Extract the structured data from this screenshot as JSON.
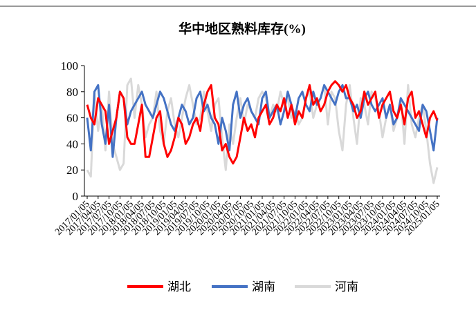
{
  "chart_data": {
    "type": "line",
    "title": "华中地区熟料库存(%)",
    "categories": [
      "2017/01/05",
      null,
      null,
      "2017/04/05",
      null,
      null,
      "2017/07/05",
      null,
      null,
      "2017/10/05",
      null,
      null,
      "2018/01/05",
      null,
      null,
      "2018/04/05",
      null,
      null,
      "2018/07/05",
      null,
      null,
      "2018/10/05",
      null,
      null,
      "2019/01/05",
      null,
      null,
      "2019/04/05",
      null,
      null,
      "2019/07/05",
      null,
      null,
      "2019/10/05",
      null,
      null,
      "2020/01/05",
      null,
      null,
      "2020/04/05",
      null,
      null,
      "2020/07/05",
      null,
      null,
      "2020/10/05",
      null,
      null,
      "2021/01/05",
      null,
      null,
      "2021/04/05",
      null,
      null,
      "2021/07/05",
      null,
      null,
      "2021/10/05",
      null,
      null,
      "2022/01/05",
      null,
      null,
      "2022/04/05",
      null,
      null,
      "2022/07/05",
      null,
      null,
      "2022/10/05",
      null,
      null,
      "2023/01/05",
      null,
      null,
      "2023/04/05",
      null,
      null,
      "2023/07/05",
      null,
      null,
      "2023/10/05",
      null,
      null,
      "2024/01/05",
      null,
      null,
      "2024/04/05",
      null,
      null,
      "2024/07/05",
      null,
      null,
      "2024/10/05",
      null,
      null,
      "2025/01/05"
    ],
    "series": [
      {
        "name": "湖北",
        "color": "#ff0000",
        "values": [
          70,
          60,
          55,
          75,
          70,
          65,
          40,
          50,
          60,
          80,
          75,
          45,
          40,
          40,
          55,
          70,
          30,
          30,
          45,
          60,
          65,
          40,
          30,
          35,
          45,
          60,
          55,
          40,
          45,
          55,
          60,
          50,
          70,
          80,
          85,
          60,
          55,
          35,
          40,
          30,
          25,
          30,
          45,
          60,
          50,
          55,
          45,
          60,
          65,
          70,
          55,
          60,
          70,
          65,
          75,
          60,
          70,
          55,
          65,
          60,
          75,
          85,
          70,
          75,
          65,
          70,
          80,
          85,
          88,
          85,
          80,
          85,
          75,
          70,
          60,
          65,
          80,
          70,
          75,
          80,
          60,
          70,
          75,
          80,
          65,
          60,
          70,
          55,
          75,
          80,
          60,
          65,
          55,
          45,
          60,
          65,
          58
        ]
      },
      {
        "name": "湖南",
        "color": "#4472c4",
        "values": [
          60,
          35,
          80,
          85,
          55,
          40,
          70,
          30,
          60,
          80,
          75,
          55,
          65,
          70,
          75,
          80,
          70,
          65,
          60,
          70,
          80,
          75,
          65,
          55,
          50,
          60,
          70,
          65,
          55,
          60,
          75,
          80,
          65,
          70,
          60,
          55,
          40,
          60,
          50,
          35,
          70,
          80,
          60,
          70,
          75,
          65,
          60,
          55,
          75,
          80,
          60,
          65,
          70,
          55,
          65,
          80,
          70,
          60,
          75,
          80,
          70,
          65,
          80,
          70,
          75,
          85,
          80,
          75,
          70,
          80,
          85,
          75,
          75,
          65,
          70,
          60,
          75,
          80,
          70,
          65,
          70,
          75,
          60,
          70,
          55,
          60,
          75,
          70,
          65,
          60,
          55,
          50,
          70,
          65,
          50,
          35,
          60
        ]
      },
      {
        "name": "河南",
        "color": "#d9d9d9",
        "values": [
          20,
          15,
          80,
          50,
          70,
          35,
          80,
          40,
          30,
          20,
          25,
          85,
          90,
          60,
          85,
          70,
          45,
          55,
          60,
          80,
          50,
          40,
          65,
          75,
          55,
          45,
          60,
          75,
          85,
          70,
          55,
          60,
          80,
          65,
          50,
          70,
          75,
          45,
          20,
          55,
          40,
          60,
          75,
          55,
          70,
          65,
          60,
          75,
          80,
          75,
          60,
          70,
          65,
          80,
          70,
          75,
          60,
          65,
          55,
          60,
          75,
          80,
          60,
          70,
          75,
          85,
          55,
          80,
          75,
          50,
          35,
          70,
          85,
          60,
          40,
          75,
          70,
          55,
          80,
          75,
          65,
          45,
          60,
          70,
          50,
          60,
          75,
          40,
          85,
          55,
          45,
          60,
          70,
          50,
          25,
          10,
          22
        ]
      }
    ],
    "ylim": [
      0,
      100
    ],
    "yticks": [
      0,
      20,
      40,
      60,
      80,
      100
    ],
    "grid": false,
    "legend": "bottom"
  }
}
